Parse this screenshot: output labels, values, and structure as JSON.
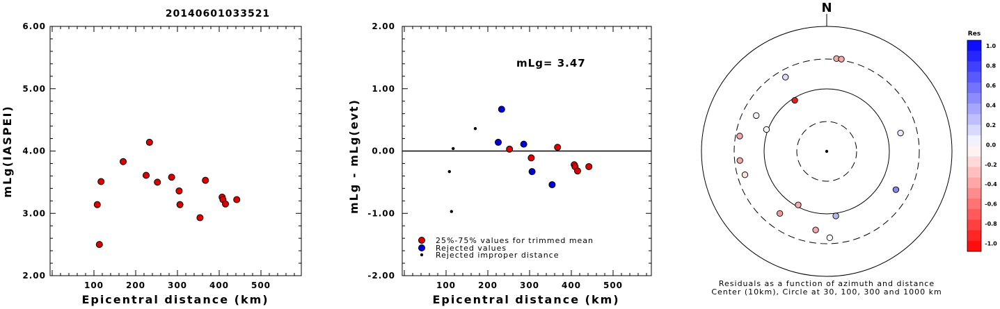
{
  "figure_title": "20140601033521",
  "chart_data": [
    {
      "type": "scatter",
      "ylabel": "mLg(IASPEI)",
      "xlabel": "Epicentral distance (km)",
      "xlim": [
        0,
        600
      ],
      "ylim": [
        2.0,
        6.0
      ],
      "xticks": [
        "100",
        "200",
        "300",
        "400",
        "500"
      ],
      "yticks": [
        "2.00",
        "3.00",
        "4.00",
        "5.00",
        "6.00"
      ],
      "series": [
        {
          "color": "#dd0000",
          "points": [
            [
              108,
              3.14
            ],
            [
              113,
              2.5
            ],
            [
              117,
              3.51
            ],
            [
              170,
              3.83
            ],
            [
              225,
              3.61
            ],
            [
              233,
              4.14
            ],
            [
              252,
              3.5
            ],
            [
              286,
              3.58
            ],
            [
              304,
              3.36
            ],
            [
              306,
              3.14
            ],
            [
              354,
              2.93
            ],
            [
              367,
              3.53
            ],
            [
              407,
              3.26
            ],
            [
              409,
              3.22
            ],
            [
              415,
              3.15
            ],
            [
              442,
              3.22
            ]
          ]
        }
      ]
    },
    {
      "type": "scatter",
      "ylabel": "mLg - mLg(evt)",
      "xlabel": "Epicentral distance (km)",
      "xlim": [
        0,
        600
      ],
      "ylim": [
        -2.0,
        2.0
      ],
      "xticks": [
        "100",
        "200",
        "300",
        "400",
        "500"
      ],
      "yticks": [
        "-2.00",
        "-1.00",
        "0.00",
        "1.00",
        "2.00"
      ],
      "annotation": "mLg= 3.47",
      "legend": [
        "25%-75% values for trimmed mean",
        "Rejected values",
        "Rejected improper distance"
      ],
      "series": [
        {
          "name": "25%-75% values for trimmed mean",
          "color": "#dd0000",
          "points": [
            [
              252,
              0.03
            ],
            [
              304,
              -0.11
            ],
            [
              367,
              0.06
            ],
            [
              407,
              -0.22
            ],
            [
              409,
              -0.25
            ],
            [
              415,
              -0.32
            ],
            [
              442,
              -0.25
            ]
          ]
        },
        {
          "name": "Rejected values",
          "color": "#0000dd",
          "points": [
            [
              225,
              0.14
            ],
            [
              233,
              0.67
            ],
            [
              286,
              0.11
            ],
            [
              306,
              -0.33
            ],
            [
              354,
              -0.54
            ]
          ]
        },
        {
          "name": "Rejected improper distance",
          "color": "#000000",
          "points": [
            [
              108,
              -0.33
            ],
            [
              113,
              -0.97
            ],
            [
              117,
              0.04
            ],
            [
              170,
              0.36
            ]
          ]
        }
      ]
    },
    {
      "type": "scatter",
      "north_label": "N",
      "caption_line1": "Residuals as a function of azimuth and distance",
      "caption_line2": "Center (10km), Circle at 30, 100, 300 and 1000 km",
      "colorbar_title": "Res",
      "colorbar_labels": [
        "1.0",
        "0.8",
        "0.6",
        "0.4",
        "0.2",
        "0.0",
        "-0.2",
        "-0.4",
        "-0.6",
        "-0.8",
        "-1.0"
      ],
      "stations": [
        {
          "az": 6,
          "dist": 320,
          "res": -0.3,
          "color": "#f3aaaa"
        },
        {
          "az": 9,
          "dist": 322,
          "res": -0.3,
          "color": "#f3aaaa"
        },
        {
          "az": 331,
          "dist": 250,
          "res": 0.2,
          "color": "#dcdcf8"
        },
        {
          "az": 328,
          "dist": 95,
          "res": -0.9,
          "color": "#e02020"
        },
        {
          "az": 297,
          "dist": 210,
          "res": 0.1,
          "color": "#f0f0fb"
        },
        {
          "az": 290,
          "dist": 110,
          "res": 0.05,
          "color": "#f6f6fb"
        },
        {
          "az": 280,
          "dist": 272,
          "res": -0.3,
          "color": "#f3aaaa"
        },
        {
          "az": 264,
          "dist": 265,
          "res": -0.3,
          "color": "#f3aaaa"
        },
        {
          "az": 254,
          "dist": 250,
          "res": -0.1,
          "color": "#fbe0e0"
        },
        {
          "az": 76,
          "dist": 190,
          "res": 0.15,
          "color": "#e8e8fb"
        },
        {
          "az": 208,
          "dist": 96,
          "res": -0.3,
          "color": "#f3aaaa"
        },
        {
          "az": 217,
          "dist": 202,
          "res": -0.35,
          "color": "#f09a9a"
        },
        {
          "az": 119,
          "dist": 210,
          "res": 0.5,
          "color": "#8888e6"
        },
        {
          "az": 172,
          "dist": 118,
          "res": 0.3,
          "color": "#b8b8f0"
        },
        {
          "az": 188,
          "dist": 213,
          "res": -0.3,
          "color": "#f3aaaa"
        },
        {
          "az": 178,
          "dist": 260,
          "res": 0.0,
          "color": "#ffffff"
        }
      ]
    }
  ]
}
